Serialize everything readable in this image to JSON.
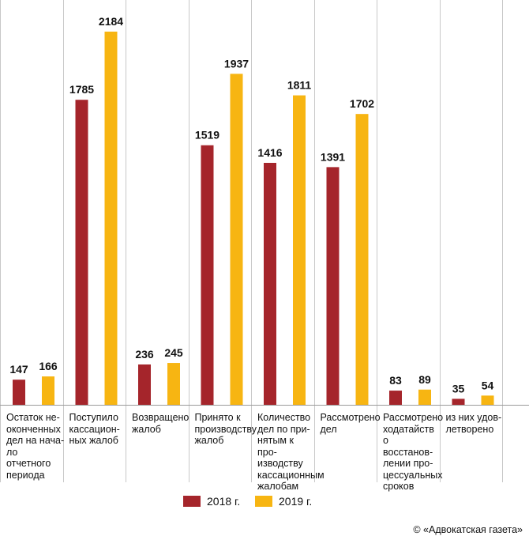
{
  "chart_data": {
    "type": "bar",
    "title": "",
    "xlabel": "",
    "ylabel": "",
    "ylim": [
      0,
      2184
    ],
    "grid": false,
    "legend_position": "bottom",
    "categories": [
      "Остаток не-\nоконченных\nдел на нача-\nло отчетного\nпериода",
      "Поступило\nкассацион-\nных жалоб",
      "Возвращено\nжалоб",
      "Принято к\nпроизводству\nжалоб",
      "Количество\nдел по при-\nнятым к про-\nизводству\nкассационным\nжалобам",
      "Рассмотрено\nдел",
      "Рассмотрено\nходатайств\nо восстанов-\nлении про-\nцессуальных\nсроков",
      "из них удов-\nлетворено"
    ],
    "series": [
      {
        "name": "2018 г.",
        "color": "#a5252b",
        "values": [
          147,
          1785,
          236,
          1519,
          1416,
          1391,
          83,
          35
        ]
      },
      {
        "name": "2019 г.",
        "color": "#f7b512",
        "values": [
          166,
          2184,
          245,
          1937,
          1811,
          1702,
          89,
          54
        ]
      }
    ]
  },
  "credit": "© «Адвокатская газета»"
}
